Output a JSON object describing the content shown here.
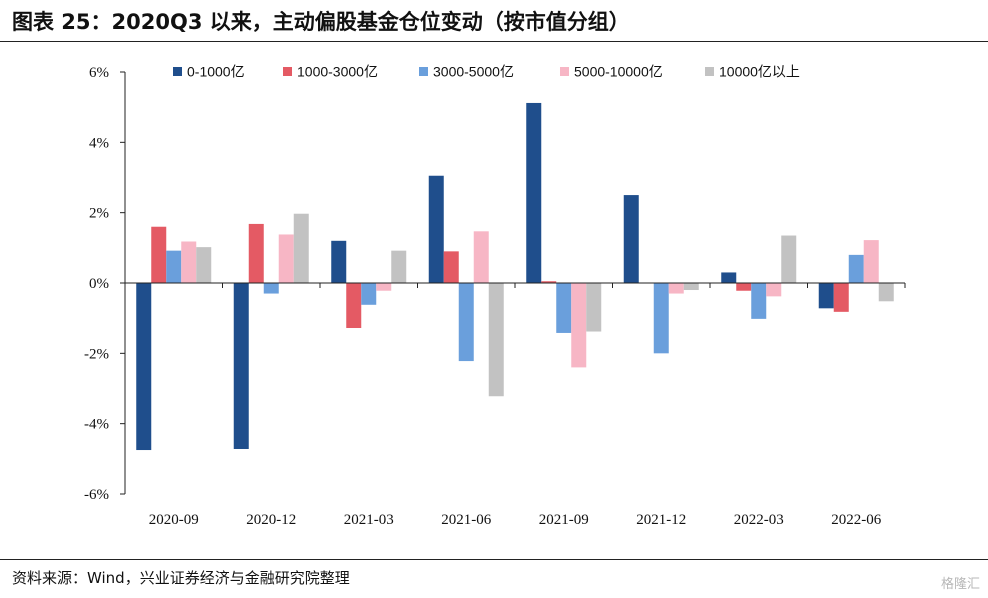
{
  "page": {
    "title": "图表 25：2020Q3 以来，主动偏股基金仓位变动（按市值分组）",
    "source": "资料来源：Wind，兴业证券经济与金融研究院整理",
    "watermark": "格隆汇"
  },
  "chart_data": {
    "type": "bar",
    "categories": [
      "2020-09",
      "2020-12",
      "2021-03",
      "2021-06",
      "2021-09",
      "2021-12",
      "2022-03",
      "2022-06"
    ],
    "series": [
      {
        "name": "0-1000亿",
        "color": "#1f4e8c",
        "values": [
          -4.75,
          -4.72,
          1.2,
          3.05,
          5.12,
          2.5,
          0.3,
          -0.72
        ]
      },
      {
        "name": "1000-3000亿",
        "color": "#e45a64",
        "values": [
          1.6,
          1.68,
          -1.28,
          0.9,
          0.05,
          0.0,
          -0.22,
          -0.82
        ]
      },
      {
        "name": "3000-5000亿",
        "color": "#6a9fdc",
        "values": [
          0.92,
          -0.3,
          -0.62,
          -2.22,
          -1.42,
          -2.0,
          -1.02,
          0.8
        ]
      },
      {
        "name": "5000-10000亿",
        "color": "#f7b6c5",
        "values": [
          1.18,
          1.38,
          -0.22,
          1.47,
          -2.4,
          -0.3,
          -0.38,
          1.22
        ]
      },
      {
        "name": "10000亿以上",
        "color": "#c2c2c2",
        "values": [
          1.02,
          1.97,
          0.92,
          -3.22,
          -1.38,
          -0.2,
          1.35,
          -0.52
        ]
      }
    ],
    "ylim": [
      -6,
      6
    ],
    "yticks": [
      "6%",
      "4%",
      "2%",
      "0%",
      "-2%",
      "-4%",
      "-6%"
    ],
    "ytick_values": [
      6,
      4,
      2,
      0,
      -2,
      -4,
      -6
    ],
    "legend_position": "top",
    "grid": false
  }
}
